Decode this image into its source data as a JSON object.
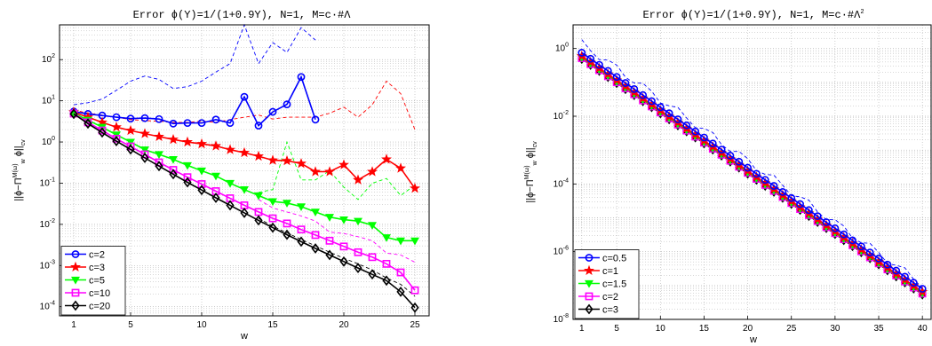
{
  "chart_data": [
    {
      "type": "line",
      "title": "Error ϕ(Y)=1/(1+0.9Y), N=1, M=c·#Λ",
      "xlabel": "w",
      "ylabel": "||ϕ−Π_w^{M(ω)} ϕ||_cv",
      "yscale": "log",
      "xlim": [
        0,
        26
      ],
      "ylim": [
        6e-05,
        700
      ],
      "grid": true,
      "legend_position": "bottom-left",
      "xtick_labels": [
        "1",
        "5",
        "10",
        "15",
        "20",
        "25"
      ],
      "ytick_labels": [
        "10^{-4}",
        "10^{-3}",
        "10^{-2}",
        "10^{-1}",
        "10^{0}",
        "10^{1}",
        "10^{2}"
      ],
      "series": [
        {
          "name": "c=2",
          "color": "#0000ff",
          "marker": "circle",
          "x": [
            1,
            2,
            3,
            4,
            5,
            6,
            7,
            8,
            9,
            10,
            11,
            12,
            13,
            14,
            15,
            16,
            17,
            18
          ],
          "y": [
            5.5,
            4.8,
            4.4,
            4.0,
            3.7,
            3.8,
            3.6,
            2.8,
            2.9,
            2.9,
            3.5,
            2.9,
            12.5,
            2.5,
            5.4,
            8.2,
            38,
            3.5
          ],
          "dashed_x": [
            1,
            2,
            3,
            4,
            5,
            6,
            7,
            8,
            9,
            10,
            11,
            12,
            13,
            14,
            15,
            16,
            17,
            18
          ],
          "dashed_y": [
            8,
            9,
            11,
            18,
            30,
            40,
            33,
            20,
            22,
            30,
            50,
            80,
            700,
            80,
            260,
            150,
            600,
            300
          ]
        },
        {
          "name": "c=3",
          "color": "#ff0000",
          "marker": "star",
          "x": [
            1,
            2,
            3,
            4,
            5,
            6,
            7,
            8,
            9,
            10,
            11,
            12,
            13,
            14,
            15,
            16,
            17,
            18,
            19,
            20,
            21,
            22,
            23,
            24,
            25
          ],
          "y": [
            5.3,
            4.0,
            3.0,
            2.3,
            1.9,
            1.6,
            1.35,
            1.15,
            1.0,
            0.9,
            0.8,
            0.65,
            0.55,
            0.45,
            0.36,
            0.35,
            0.3,
            0.19,
            0.19,
            0.28,
            0.12,
            0.19,
            0.38,
            0.23,
            0.075
          ],
          "dashed_x": [
            1,
            2,
            3,
            4,
            5,
            6,
            7,
            8,
            9,
            10,
            11,
            12,
            13,
            14,
            15,
            16,
            17,
            18,
            19,
            20,
            21,
            22,
            23,
            24,
            25
          ],
          "dashed_y": [
            6,
            5,
            4.5,
            4,
            3.5,
            3.3,
            3.2,
            3,
            3,
            3.2,
            3,
            3.5,
            4,
            4.5,
            3.6,
            4,
            4,
            4,
            5,
            7,
            4,
            8,
            30,
            15,
            2
          ]
        },
        {
          "name": "c=5",
          "color": "#00ff00",
          "marker": "triangle-down",
          "x": [
            1,
            2,
            3,
            4,
            5,
            6,
            7,
            8,
            9,
            10,
            11,
            12,
            13,
            14,
            15,
            16,
            17,
            18,
            19,
            20,
            21,
            22,
            23,
            24,
            25
          ],
          "y": [
            5.0,
            3.4,
            2.3,
            1.5,
            1.0,
            0.65,
            0.5,
            0.38,
            0.27,
            0.2,
            0.15,
            0.1,
            0.07,
            0.05,
            0.036,
            0.033,
            0.027,
            0.02,
            0.015,
            0.013,
            0.012,
            0.0095,
            0.0048,
            0.004,
            0.004
          ],
          "dashed_x": [
            14,
            15,
            16,
            17,
            18,
            19,
            20,
            21,
            22,
            23,
            24,
            25
          ],
          "dashed_y": [
            0.06,
            0.07,
            1.0,
            0.12,
            0.12,
            0.2,
            0.08,
            0.04,
            0.1,
            0.13,
            0.05,
            0.09
          ]
        },
        {
          "name": "c=10",
          "color": "#ff00ff",
          "marker": "square",
          "x": [
            1,
            2,
            3,
            4,
            5,
            6,
            7,
            8,
            9,
            10,
            11,
            12,
            13,
            14,
            15,
            16,
            17,
            18,
            19,
            20,
            21,
            22,
            23,
            24,
            25
          ],
          "y": [
            4.9,
            3.0,
            1.9,
            1.2,
            0.78,
            0.5,
            0.32,
            0.21,
            0.14,
            0.095,
            0.064,
            0.043,
            0.029,
            0.02,
            0.014,
            0.0105,
            0.0075,
            0.0055,
            0.004,
            0.0029,
            0.0021,
            0.0016,
            0.0011,
            0.00068,
            0.00025
          ],
          "dashed_x": [
            14,
            15,
            16,
            17,
            18,
            19,
            20,
            21,
            22,
            23,
            24,
            25
          ],
          "dashed_y": [
            0.04,
            0.025,
            0.02,
            0.016,
            0.012,
            0.0065,
            0.006,
            0.005,
            0.004,
            0.002,
            0.0018,
            0.0012
          ]
        },
        {
          "name": "c=20",
          "color": "#000000",
          "marker": "diamond",
          "x": [
            1,
            2,
            3,
            4,
            5,
            6,
            7,
            8,
            9,
            10,
            11,
            12,
            13,
            14,
            15,
            16,
            17,
            18,
            19,
            20,
            21,
            22,
            23,
            24,
            25
          ],
          "y": [
            4.8,
            2.8,
            1.7,
            1.05,
            0.66,
            0.41,
            0.26,
            0.165,
            0.105,
            0.068,
            0.044,
            0.029,
            0.019,
            0.0125,
            0.0083,
            0.0056,
            0.0038,
            0.0026,
            0.0018,
            0.00125,
            0.00087,
            0.00061,
            0.00043,
            0.00023,
            9.5e-05
          ],
          "dashed_x": [
            14,
            15,
            16,
            17,
            18,
            19,
            20,
            21,
            22,
            23,
            24,
            25
          ],
          "dashed_y": [
            0.014,
            0.009,
            0.0062,
            0.0043,
            0.003,
            0.0021,
            0.0015,
            0.0011,
            0.00078,
            0.0005,
            0.00035,
            0.00018
          ]
        }
      ]
    },
    {
      "type": "line",
      "title": "Error ϕ(Y)=1/(1+0.9Y), N=1, M=c·#Λ²",
      "xlabel": "w",
      "ylabel": "||ϕ−Π_w^{M(ω)} ϕ||_cv",
      "yscale": "log",
      "xlim": [
        0,
        41
      ],
      "ylim": [
        1e-08,
        5
      ],
      "grid": true,
      "legend_position": "bottom-left",
      "xtick_labels": [
        "1",
        "5",
        "10",
        "15",
        "20",
        "25",
        "30",
        "35",
        "40"
      ],
      "ytick_labels": [
        "10^{-8}",
        "10^{-6}",
        "10^{-4}",
        "10^{-2}",
        "10^{0}"
      ],
      "x_range": [
        1,
        40
      ],
      "series": [
        {
          "name": "c=0.5",
          "color": "#0000ff",
          "marker": "circle",
          "y_start": 0.75,
          "y_end": 8e-08
        },
        {
          "name": "c=1",
          "color": "#ff0000",
          "marker": "star",
          "y_start": 0.6,
          "y_end": 6.5e-08
        },
        {
          "name": "c=1.5",
          "color": "#00ff00",
          "marker": "triangle-down",
          "y_start": 0.55,
          "y_end": 6e-08
        },
        {
          "name": "c=2",
          "color": "#ff00ff",
          "marker": "square",
          "y_start": 0.52,
          "y_end": 5.8e-08
        },
        {
          "name": "c=3",
          "color": "#000000",
          "marker": "diamond",
          "y_start": 0.5,
          "y_end": 5.5e-08
        }
      ],
      "dashed": {
        "color": "#0000ff",
        "y_start": 1.4,
        "y_end": 1.1e-07
      }
    }
  ]
}
